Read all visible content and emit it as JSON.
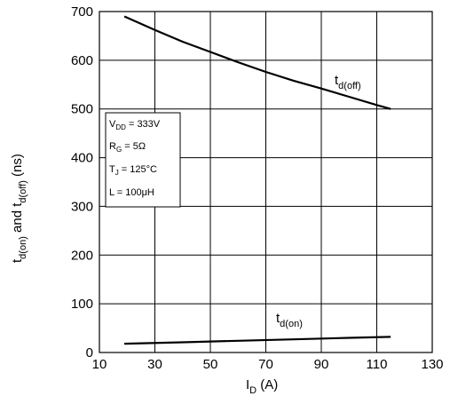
{
  "chart_data": {
    "type": "line",
    "xlabel": {
      "main": "I",
      "sub": "D",
      "rest": " (A)"
    },
    "ylabel": {
      "p1": "t",
      "s1": "d(on)",
      "p2": " and t",
      "s2": "d(off)",
      "p3": " (ns)"
    },
    "xlim": [
      10,
      130
    ],
    "ylim": [
      0,
      700
    ],
    "xticks": [
      10,
      30,
      50,
      70,
      90,
      110,
      130
    ],
    "yticks": [
      0,
      100,
      200,
      300,
      400,
      500,
      600,
      700
    ],
    "grid": true,
    "series": [
      {
        "name": "t_d(off)",
        "label_main": "t",
        "label_sub": "d(off)",
        "x": [
          19,
          30,
          40,
          50,
          60,
          70,
          80,
          90,
          100,
          110,
          115
        ],
        "y": [
          690,
          662,
          638,
          617,
          596,
          576,
          558,
          542,
          525,
          508,
          500
        ]
      },
      {
        "name": "t_d(on)",
        "label_main": "t",
        "label_sub": "d(on)",
        "x": [
          19,
          40,
          60,
          80,
          100,
          115
        ],
        "y": [
          18,
          21,
          24,
          27,
          30,
          32
        ]
      }
    ],
    "conditions": [
      {
        "main": "V",
        "sub": "DD",
        "rest": " = 333V"
      },
      {
        "main": "R",
        "sub": "G",
        "rest": " = 5Ω"
      },
      {
        "main": "T",
        "sub": "J",
        "rest": " = 125°C"
      },
      {
        "main": "L = 100μH",
        "sub": "",
        "rest": ""
      }
    ]
  }
}
